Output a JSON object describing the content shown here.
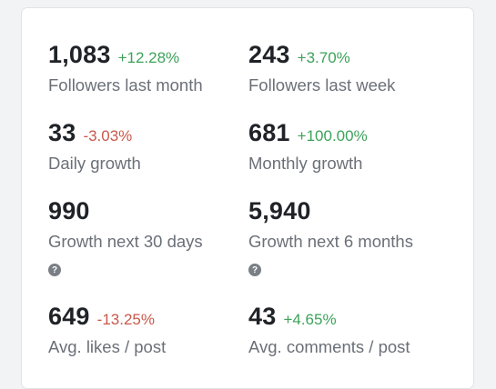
{
  "stats": [
    {
      "value": "1,083",
      "change": "+12.28%",
      "direction": "up",
      "label": "Followers last month"
    },
    {
      "value": "243",
      "change": "+3.70%",
      "direction": "up",
      "label": "Followers last week"
    },
    {
      "value": "33",
      "change": "-3.03%",
      "direction": "down",
      "label": "Daily growth"
    },
    {
      "value": "681",
      "change": "+100.00%",
      "direction": "up",
      "label": "Monthly growth"
    },
    {
      "value": "990",
      "label": "Growth next 30 days",
      "help_icon": "question-circle-icon"
    },
    {
      "value": "5,940",
      "label": "Growth next 6 months",
      "help_icon": "question-circle-icon"
    },
    {
      "value": "649",
      "change": "-13.25%",
      "direction": "down",
      "label": "Avg. likes / post"
    },
    {
      "value": "43",
      "change": "+4.65%",
      "direction": "up",
      "label": "Avg. comments / post"
    }
  ],
  "colors": {
    "positive": "#3ca35a",
    "negative": "#c9584b",
    "value_text": "#1f2328",
    "label_text": "#6b7078"
  },
  "help_glyph": "?"
}
